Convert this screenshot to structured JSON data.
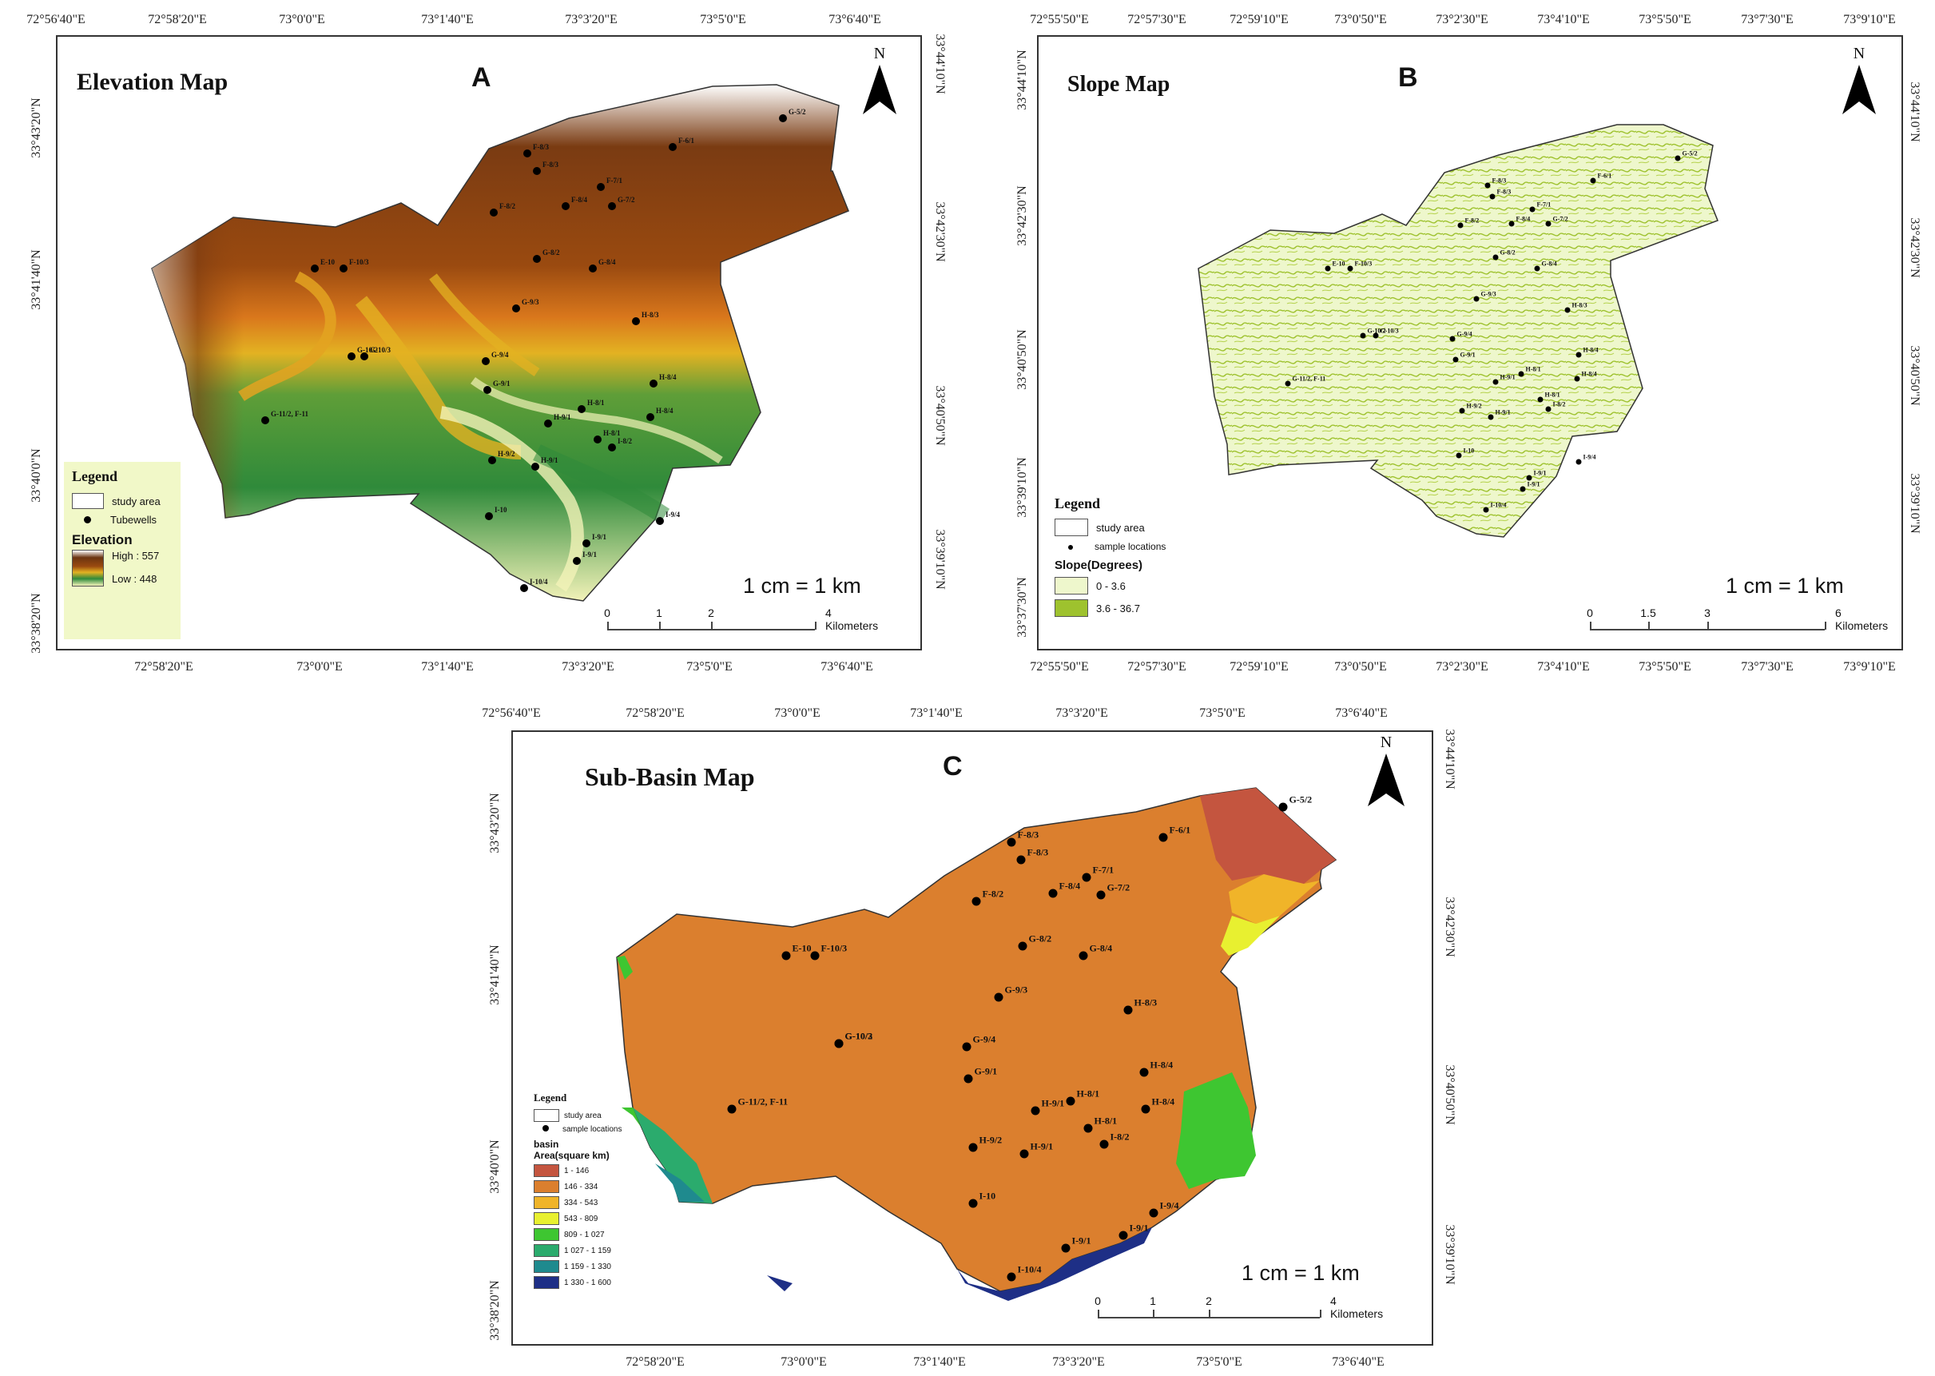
{
  "panels": {
    "a": {
      "letter": "A",
      "title": "Elevation Map",
      "top_ticks": [
        "72°56'40\"E",
        "72°58'20\"E",
        "73°0'0\"E",
        "73°1'40\"E",
        "73°3'20\"E",
        "73°5'0\"E",
        "73°6'40\"E"
      ],
      "bottom_ticks": [
        "72°58'20\"E",
        "73°0'0\"E",
        "73°1'40\"E",
        "73°3'20\"E",
        "73°5'0\"E",
        "73°6'40\"E"
      ],
      "left_ticks": [
        "33°43'20\"N",
        "33°41'40\"N",
        "33°40'0\"N",
        "33°38'20\"N"
      ],
      "right_ticks": [
        "33°44'10\"N",
        "33°42'30\"N",
        "33°40'50\"N",
        "33°39'10\"N"
      ],
      "scale_text": "1 cm = 1 km",
      "scale_labels": [
        "0",
        "1",
        "2",
        "4 Kilometers"
      ],
      "legend": {
        "heading": "Legend",
        "study_area": "study area",
        "points": "Tubewells",
        "elev_heading": "Elevation",
        "high": "High : 557",
        "low": "Low : 448"
      }
    },
    "b": {
      "letter": "B",
      "title": "Slope Map",
      "top_ticks": [
        "72°55'50\"E",
        "72°57'30\"E",
        "72°59'10\"E",
        "73°0'50\"E",
        "73°2'30\"E",
        "73°4'10\"E",
        "73°5'50\"E",
        "73°7'30\"E",
        "73°9'10\"E"
      ],
      "bottom_ticks": [
        "72°55'50\"E",
        "72°57'30\"E",
        "72°59'10\"E",
        "73°0'50\"E",
        "73°2'30\"E",
        "73°4'10\"E",
        "73°5'50\"E",
        "73°7'30\"E",
        "73°9'10\"E"
      ],
      "left_ticks": [
        "33°44'10\"N",
        "33°42'30\"N",
        "33°40'50\"N",
        "33°39'10\"N",
        "33°37'30\"N"
      ],
      "right_ticks": [
        "33°44'10\"N",
        "33°42'30\"N",
        "33°40'50\"N",
        "33°39'10\"N"
      ],
      "scale_text": "1 cm = 1 km",
      "scale_labels": [
        "0",
        "1.5",
        "3",
        "6 Kilometers"
      ],
      "legend": {
        "heading": "Legend",
        "study_area": "study area",
        "points": "sample locations",
        "slope_heading": "Slope(Degrees)",
        "classes": [
          {
            "label": "0 - 3.6",
            "color": "#eef7cc"
          },
          {
            "label": "3.6 - 36.7",
            "color": "#9ec22e"
          }
        ]
      }
    },
    "c": {
      "letter": "C",
      "title": "Sub-Basin Map",
      "top_ticks": [
        "72°56'40\"E",
        "72°58'20\"E",
        "73°0'0\"E",
        "73°1'40\"E",
        "73°3'20\"E",
        "73°5'0\"E",
        "73°6'40\"E"
      ],
      "bottom_ticks": [
        "72°58'20\"E",
        "73°0'0\"E",
        "73°1'40\"E",
        "73°3'20\"E",
        "73°5'0\"E",
        "73°6'40\"E"
      ],
      "left_ticks": [
        "33°43'20\"N",
        "33°41'40\"N",
        "33°40'0\"N",
        "33°38'20\"N"
      ],
      "right_ticks": [
        "33°44'10\"N",
        "33°42'30\"N",
        "33°40'50\"N",
        "33°39'10\"N"
      ],
      "scale_text": "1 cm = 1 km",
      "scale_labels": [
        "0",
        "1",
        "2",
        "4 Kilometers"
      ],
      "legend": {
        "heading": "Legend",
        "study_area": "study area",
        "points": "sample locations",
        "basin_heading": "basin",
        "area_heading": "Area(square km)",
        "classes": [
          {
            "label": "1 - 146",
            "color": "#c4553f"
          },
          {
            "label": "146 - 334",
            "color": "#db7f2e"
          },
          {
            "label": "334 - 543",
            "color": "#f0b429"
          },
          {
            "label": "543 - 809",
            "color": "#e8f030"
          },
          {
            "label": "809 - 1 027",
            "color": "#3ec631"
          },
          {
            "label": "1 027 - 1 159",
            "color": "#2bab6d"
          },
          {
            "label": "1 159 - 1 330",
            "color": "#1f8a8e"
          },
          {
            "label": "1 330 - 1 600",
            "color": "#1e2f86"
          }
        ]
      }
    }
  },
  "colors": {
    "elev_high": "#6b3411",
    "elev_mid": "#d9a21c",
    "elev_low": "#2f8a3a",
    "elev_lowest": "#f2f2b8",
    "slope_flat": "#eef7cc",
    "slope_steep": "#9ec22e",
    "basin_main": "#db7f2e"
  },
  "wells": [
    {
      "id": "a1",
      "label": "F-8/3"
    },
    {
      "id": "a2",
      "label": "F-8/3"
    },
    {
      "id": "a3",
      "label": "F-6/1"
    },
    {
      "id": "a4",
      "label": "G-5/2"
    },
    {
      "id": "a5",
      "label": "F-7/1"
    },
    {
      "id": "a6",
      "label": "F-8/2"
    },
    {
      "id": "a7",
      "label": "F-8/4"
    },
    {
      "id": "a8",
      "label": "G-7/2"
    },
    {
      "id": "a9",
      "label": "E-10"
    },
    {
      "id": "a10",
      "label": "F-10/3"
    },
    {
      "id": "a11",
      "label": "G-8/2"
    },
    {
      "id": "a12",
      "label": "G-8/4"
    },
    {
      "id": "a13",
      "label": "G-9/3"
    },
    {
      "id": "a14",
      "label": "H-8/3"
    },
    {
      "id": "a15",
      "label": "G-10/2"
    },
    {
      "id": "a16",
      "label": "G-10/3"
    },
    {
      "id": "a17",
      "label": "G-9/4"
    },
    {
      "id": "a18",
      "label": "G-9/1"
    },
    {
      "id": "a19",
      "label": "G-11/2, F-11"
    },
    {
      "id": "a20",
      "label": "H-8/4"
    },
    {
      "id": "a21",
      "label": "H-9/1"
    },
    {
      "id": "a22",
      "label": "H-8/1"
    },
    {
      "id": "a23",
      "label": "H-8/4"
    },
    {
      "id": "a24",
      "label": "H-9/2"
    },
    {
      "id": "a25",
      "label": "H-8/1"
    },
    {
      "id": "a26",
      "label": "I-8/2"
    },
    {
      "id": "a27",
      "label": "H-9/1"
    },
    {
      "id": "a28",
      "label": "I-10"
    },
    {
      "id": "a29",
      "label": "I-9/1"
    },
    {
      "id": "a30",
      "label": "I-9/4"
    },
    {
      "id": "a31",
      "label": "I-9/1"
    },
    {
      "id": "a32",
      "label": "I-10/4"
    }
  ]
}
